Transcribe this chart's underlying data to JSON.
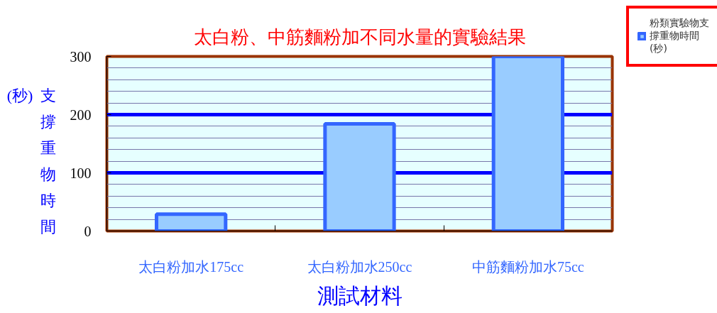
{
  "chart_data": {
    "type": "bar",
    "title": "太白粉、中筋麵粉加不同水量的實驗結果",
    "xlabel": "測試材料",
    "ylabel": "支撐重物時間(秒)",
    "categories": [
      "太白粉加水175cc",
      "太白粉加水250cc",
      "中筋麵粉加水75cc"
    ],
    "series": [
      {
        "name": "粉類實驗物支撐重物時間(秒)",
        "color": "#99ccff",
        "values": [
          29,
          184,
          300
        ]
      }
    ],
    "ylim": [
      0,
      300
    ],
    "yticks": [
      0,
      {
        "value": 20,
        "label": null
      },
      {
        "value": 40,
        "label": null
      },
      {
        "value": 60,
        "label": null
      },
      {
        "value": 80,
        "label": null
      },
      100,
      {
        "value": 120,
        "label": null
      },
      {
        "value": 140,
        "label": null
      },
      {
        "value": 160,
        "label": null
      },
      {
        "value": 180,
        "label": null
      },
      200,
      {
        "value": 220,
        "label": null
      },
      {
        "value": 240,
        "label": null
      },
      {
        "value": 260,
        "label": null
      },
      {
        "value": 280,
        "label": null
      },
      300
    ],
    "grid": "y",
    "legend": "top right"
  }
}
